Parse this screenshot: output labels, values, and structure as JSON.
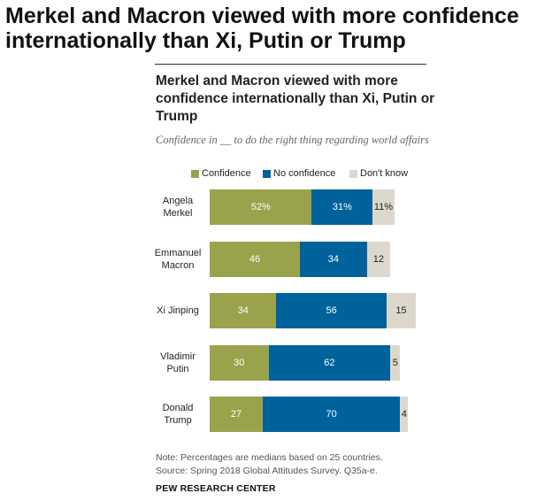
{
  "page_title": "Merkel and Macron viewed with more confidence internationally than Xi, Putin or Trump",
  "colors": {
    "confidence": "#9aa34c",
    "no_confidence": "#00629b",
    "dont_know": "#dcd9cc"
  },
  "chart_data": {
    "type": "bar",
    "orientation": "horizontal",
    "stacked": true,
    "title": "Merkel and Macron viewed with more confidence internationally than Xi, Putin or Trump",
    "subtitle": "Confidence in __ to do the right thing regarding world affairs",
    "legend_position": "top",
    "categories": [
      [
        "Angela",
        "Merkel"
      ],
      [
        "Emmanuel",
        "Macron"
      ],
      [
        "Xi Jinping"
      ],
      [
        "Vladimir",
        "Putin"
      ],
      [
        "Donald",
        "Trump"
      ]
    ],
    "series": [
      {
        "name": "Confidence",
        "values": [
          52,
          46,
          34,
          30,
          27
        ],
        "labels": [
          "52%",
          "46",
          "34",
          "30",
          "27"
        ]
      },
      {
        "name": "No confidence",
        "values": [
          31,
          34,
          56,
          62,
          70
        ],
        "labels": [
          "31%",
          "34",
          "56",
          "62",
          "70"
        ]
      },
      {
        "name": "Don't know",
        "values": [
          11,
          12,
          15,
          5,
          4
        ],
        "labels": [
          "11%",
          "12",
          "15",
          "5",
          "4"
        ]
      }
    ]
  },
  "footer": {
    "note": "Note: Percentages are medians based on 25 countries.",
    "source": "Source: Spring 2018 Global Attitudes Survey. Q35a-e.",
    "brand": "PEW RESEARCH CENTER"
  }
}
